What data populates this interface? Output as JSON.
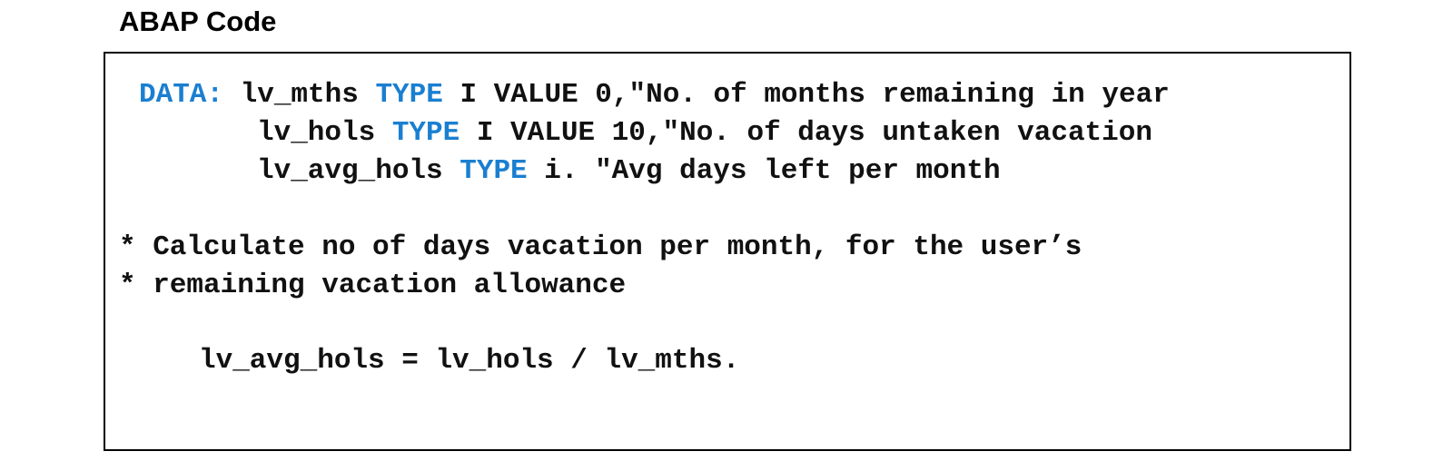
{
  "heading": "ABAP Code",
  "colors": {
    "keyword": "#1a7fd0",
    "text": "#111111",
    "border": "#000000"
  },
  "code": {
    "line1": {
      "kw1": "DATA:",
      "t1": " lv_mths ",
      "kw2": "TYPE",
      "t2": " I VALUE 0,\"No. of months remaining in year"
    },
    "line2": {
      "t1": "lv_hols ",
      "kw1": "TYPE",
      "t2": " I VALUE 10,\"No. of days untaken vacation"
    },
    "line3": {
      "t1": "lv_avg_hols ",
      "kw1": "TYPE",
      "t2": " i. \"Avg days left per month"
    },
    "comment1": "* Calculate no of days vacation per month, for the user’s",
    "comment2": "* remaining vacation allowance",
    "statement": "lv_avg_hols = lv_hols / lv_mths."
  }
}
